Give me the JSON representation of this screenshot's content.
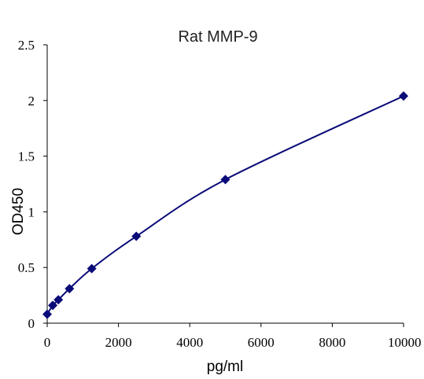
{
  "chart_data": {
    "type": "scatter",
    "title": "Rat  MMP-9",
    "xlabel": "pg/ml",
    "ylabel": "OD450",
    "xlim": [
      0,
      10000
    ],
    "ylim": [
      0,
      2.5
    ],
    "x_ticks": [
      {
        "value": 0,
        "label": "0"
      },
      {
        "value": 2000,
        "label": "2000"
      },
      {
        "value": 4000,
        "label": "4000"
      },
      {
        "value": 6000,
        "label": "6000"
      },
      {
        "value": 8000,
        "label": "8000"
      },
      {
        "value": 10000,
        "label": "10000"
      }
    ],
    "y_ticks": [
      {
        "value": 0,
        "label": "0"
      },
      {
        "value": 0.5,
        "label": "0.5"
      },
      {
        "value": 1,
        "label": "1"
      },
      {
        "value": 1.5,
        "label": "1.5"
      },
      {
        "value": 2,
        "label": "2"
      },
      {
        "value": 2.5,
        "label": "2.5"
      }
    ],
    "grid": false,
    "legend": "none",
    "series": [
      {
        "marker": "diamond",
        "color": "#0a0a78",
        "fit_line": "smooth-curve",
        "points": [
          {
            "x": 0,
            "y": 0.08
          },
          {
            "x": 156,
            "y": 0.16
          },
          {
            "x": 313,
            "y": 0.21
          },
          {
            "x": 625,
            "y": 0.31
          },
          {
            "x": 1250,
            "y": 0.49
          },
          {
            "x": 2500,
            "y": 0.78
          },
          {
            "x": 5000,
            "y": 1.29
          },
          {
            "x": 10000,
            "y": 2.04
          }
        ]
      }
    ]
  }
}
